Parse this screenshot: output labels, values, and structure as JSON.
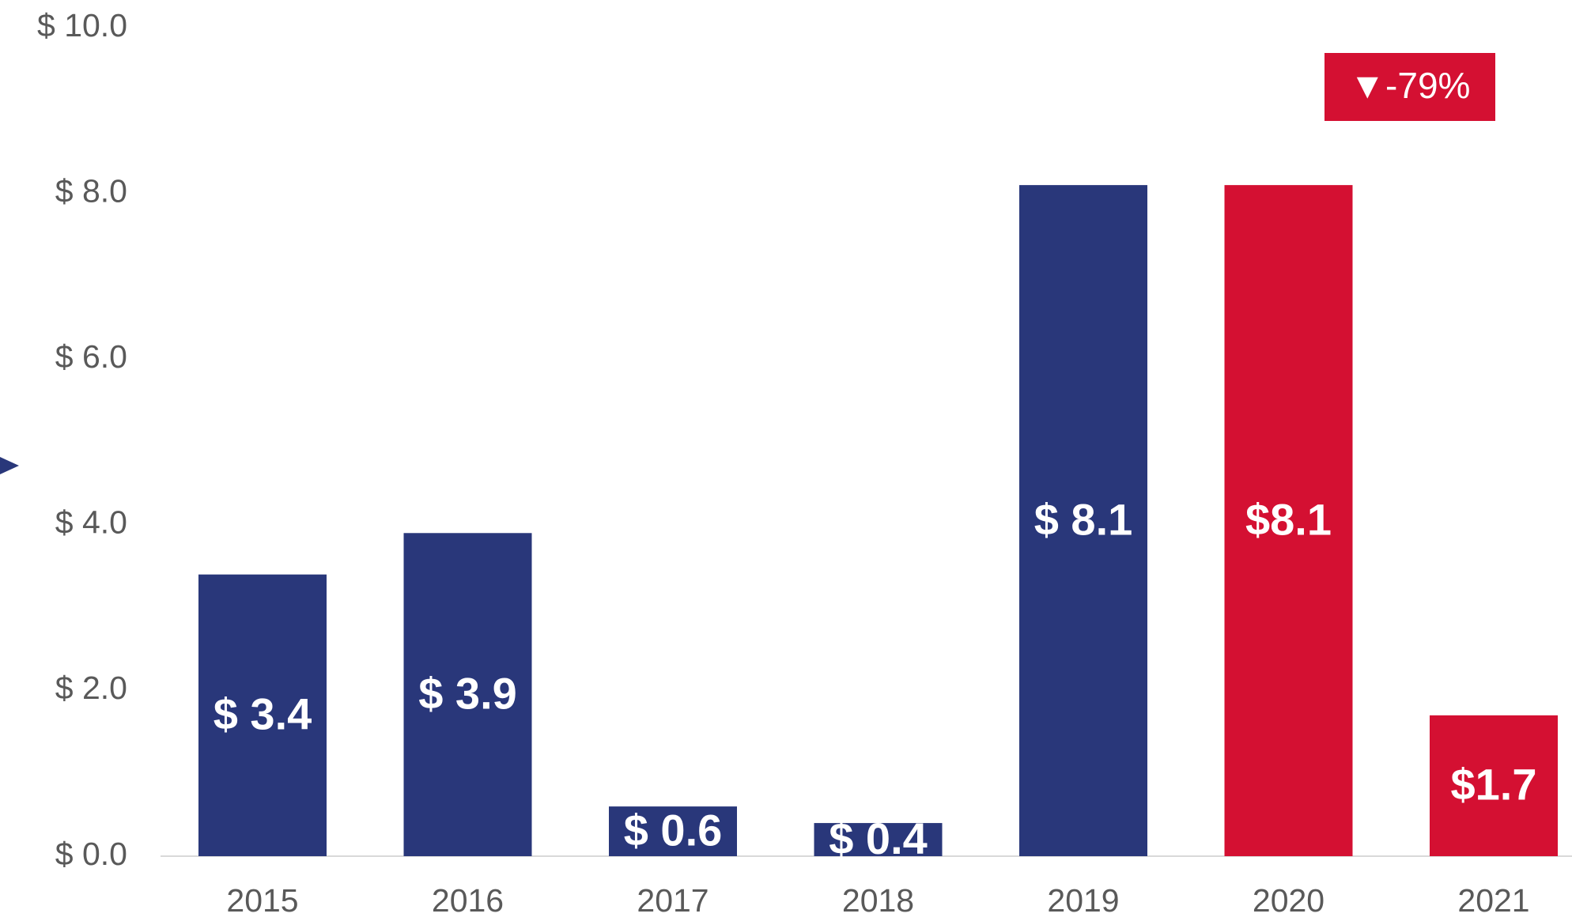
{
  "chart_data": {
    "type": "bar",
    "categories": [
      "2015",
      "2016",
      "2017",
      "2018",
      "2019",
      "2020",
      "2021"
    ],
    "values": [
      3.4,
      3.9,
      0.6,
      0.4,
      8.1,
      8.1,
      1.7
    ],
    "value_labels": [
      "$ 3.4",
      "$ 3.9",
      "$ 0.6",
      "$ 0.4",
      "$ 8.1",
      "$8.1",
      "$1.7"
    ],
    "colors": [
      "#29377a",
      "#29377a",
      "#29377a",
      "#29377a",
      "#29377a",
      "#d41032",
      "#d41032"
    ],
    "ylim": [
      0,
      10
    ],
    "yticks": [
      {
        "value": 0,
        "label": "$ 0.0"
      },
      {
        "value": 2,
        "label": "$ 2.0"
      },
      {
        "value": 4,
        "label": "$ 4.0"
      },
      {
        "value": 6,
        "label": "$ 6.0"
      },
      {
        "value": 8,
        "label": "$ 8.0"
      },
      {
        "value": 10,
        "label": "$ 10.0"
      }
    ],
    "annotation": "▼-79%",
    "grid": false
  }
}
